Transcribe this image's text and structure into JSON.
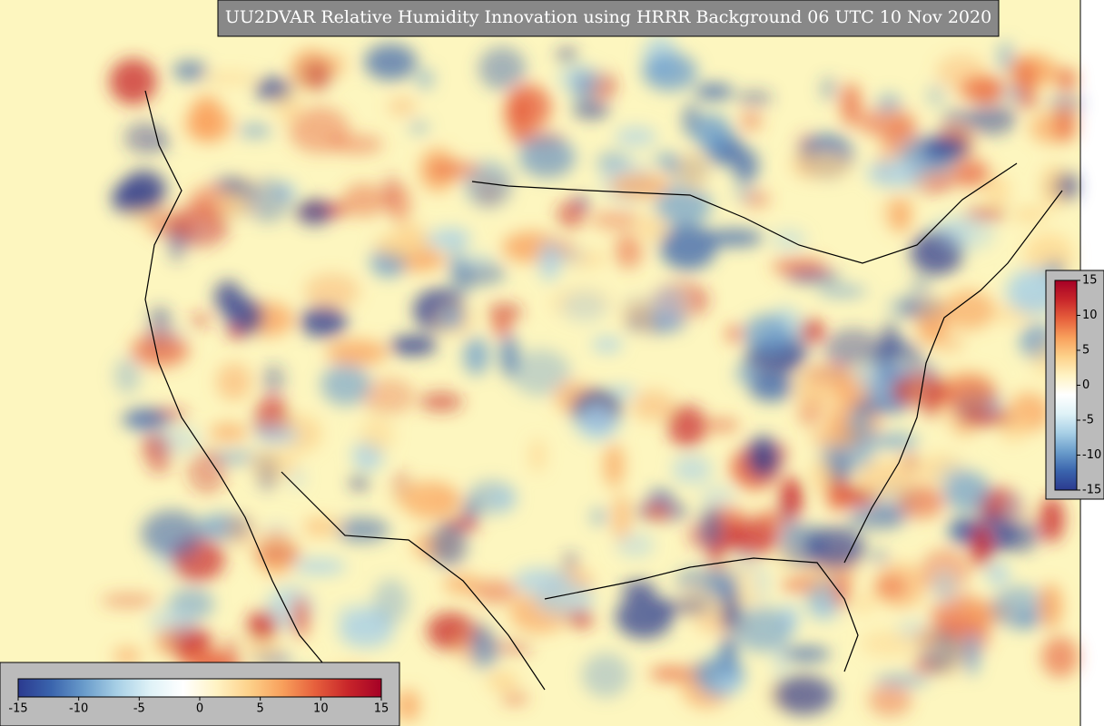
{
  "title": "UU2DVAR Relative Humidity Innovation using HRRR Background 06 UTC 10 Nov 2020",
  "colorbar": {
    "range": [
      -15,
      15
    ],
    "ticks": [
      -15,
      -10,
      -5,
      0,
      5,
      10,
      15
    ],
    "colors": [
      "#2b3a8f",
      "#3a64ad",
      "#6a9ccb",
      "#a8d0e6",
      "#dff2f7",
      "#ffffff",
      "#fff3c4",
      "#fdd18a",
      "#f8a05c",
      "#e65f3c",
      "#c8252a",
      "#a50026"
    ]
  },
  "colorbar_vertical": {
    "range": [
      -15,
      15
    ],
    "ticks": [
      -15,
      -10,
      -5,
      0,
      5,
      10,
      15
    ]
  }
}
